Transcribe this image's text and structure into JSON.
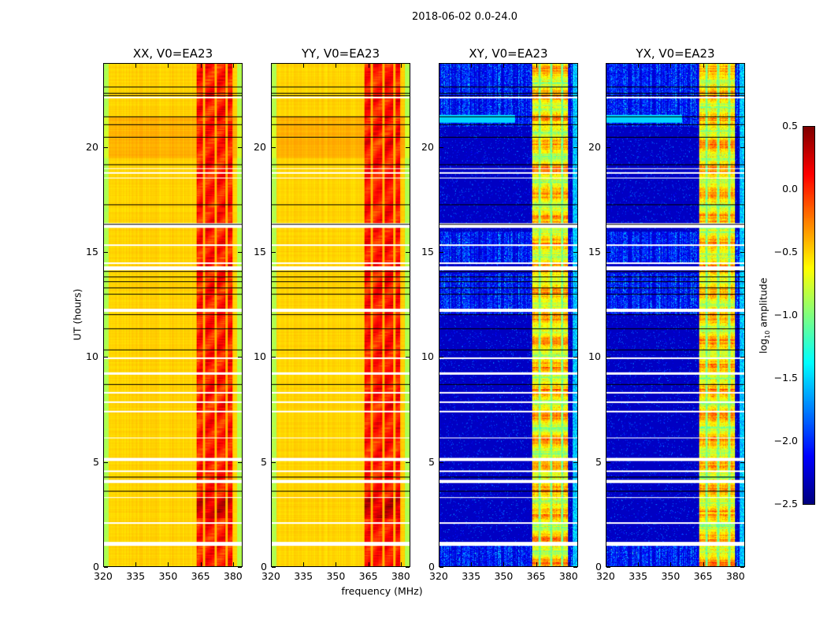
{
  "chart_data": {
    "type": "heatmap",
    "title": "2018-06-02 0.0-24.0",
    "xlabel": "frequency (MHz)",
    "ylabel": "UT (hours)",
    "xlim": [
      320,
      384.4
    ],
    "ylim": [
      0,
      24
    ],
    "xticks": [
      320,
      335,
      350,
      365,
      380
    ],
    "yticks": [
      0,
      5,
      10,
      15,
      20
    ],
    "panels": [
      {
        "title": "XX, V0=EA23",
        "kind": "parallel"
      },
      {
        "title": "YY, V0=EA23",
        "kind": "parallel"
      },
      {
        "title": "XY, V0=EA23",
        "kind": "cross"
      },
      {
        "title": "YX, V0=EA23",
        "kind": "cross"
      }
    ],
    "colorbar": {
      "label_main": "log",
      "label_sub": "10",
      "label_rest": " amplitude",
      "range": [
        -2.5,
        0.5
      ],
      "ticks": [
        "0.5",
        "0.0",
        "−0.5",
        "−1.0",
        "−1.5",
        "−2.0",
        "−2.5"
      ],
      "tick_values": [
        0.5,
        0,
        -0.5,
        -1,
        -1.5,
        -2,
        -2.5
      ],
      "colormap": "jet"
    },
    "band_MHz": [
      363,
      380
    ],
    "band_gaps_MHz": [
      366.5,
      372,
      377
    ],
    "parallel_level": {
      "background": -0.5,
      "band": 0.05
    },
    "cross_level": {
      "background": -2.3,
      "band": -0.6
    },
    "flagged_hours": [
      [
        1.0,
        1.2
      ],
      [
        2.05,
        2.12
      ],
      [
        3.28,
        3.33
      ],
      [
        4.0,
        4.15
      ],
      [
        4.52,
        4.58
      ],
      [
        5.05,
        5.18
      ],
      [
        6.12,
        6.18
      ],
      [
        7.38,
        7.44
      ],
      [
        7.83,
        7.88
      ],
      [
        8.28,
        8.33
      ],
      [
        9.15,
        9.28
      ],
      [
        9.93,
        9.98
      ],
      [
        12.15,
        12.3
      ],
      [
        14.15,
        14.35
      ],
      [
        14.47,
        14.53
      ],
      [
        15.33,
        15.38
      ],
      [
        16.2,
        16.4
      ],
      [
        18.53,
        18.58
      ],
      [
        18.78,
        18.83
      ],
      [
        18.98,
        19.03
      ],
      [
        22.38,
        22.45
      ]
    ],
    "black_lines_hours": [
      3.6,
      4.27,
      8.7,
      10.35,
      11.35,
      12.05,
      13.0,
      13.3,
      13.6,
      13.85,
      14.1,
      16.35,
      17.3,
      19.2,
      20.5,
      21.1,
      21.5,
      22.5,
      22.6,
      22.9
    ]
  }
}
